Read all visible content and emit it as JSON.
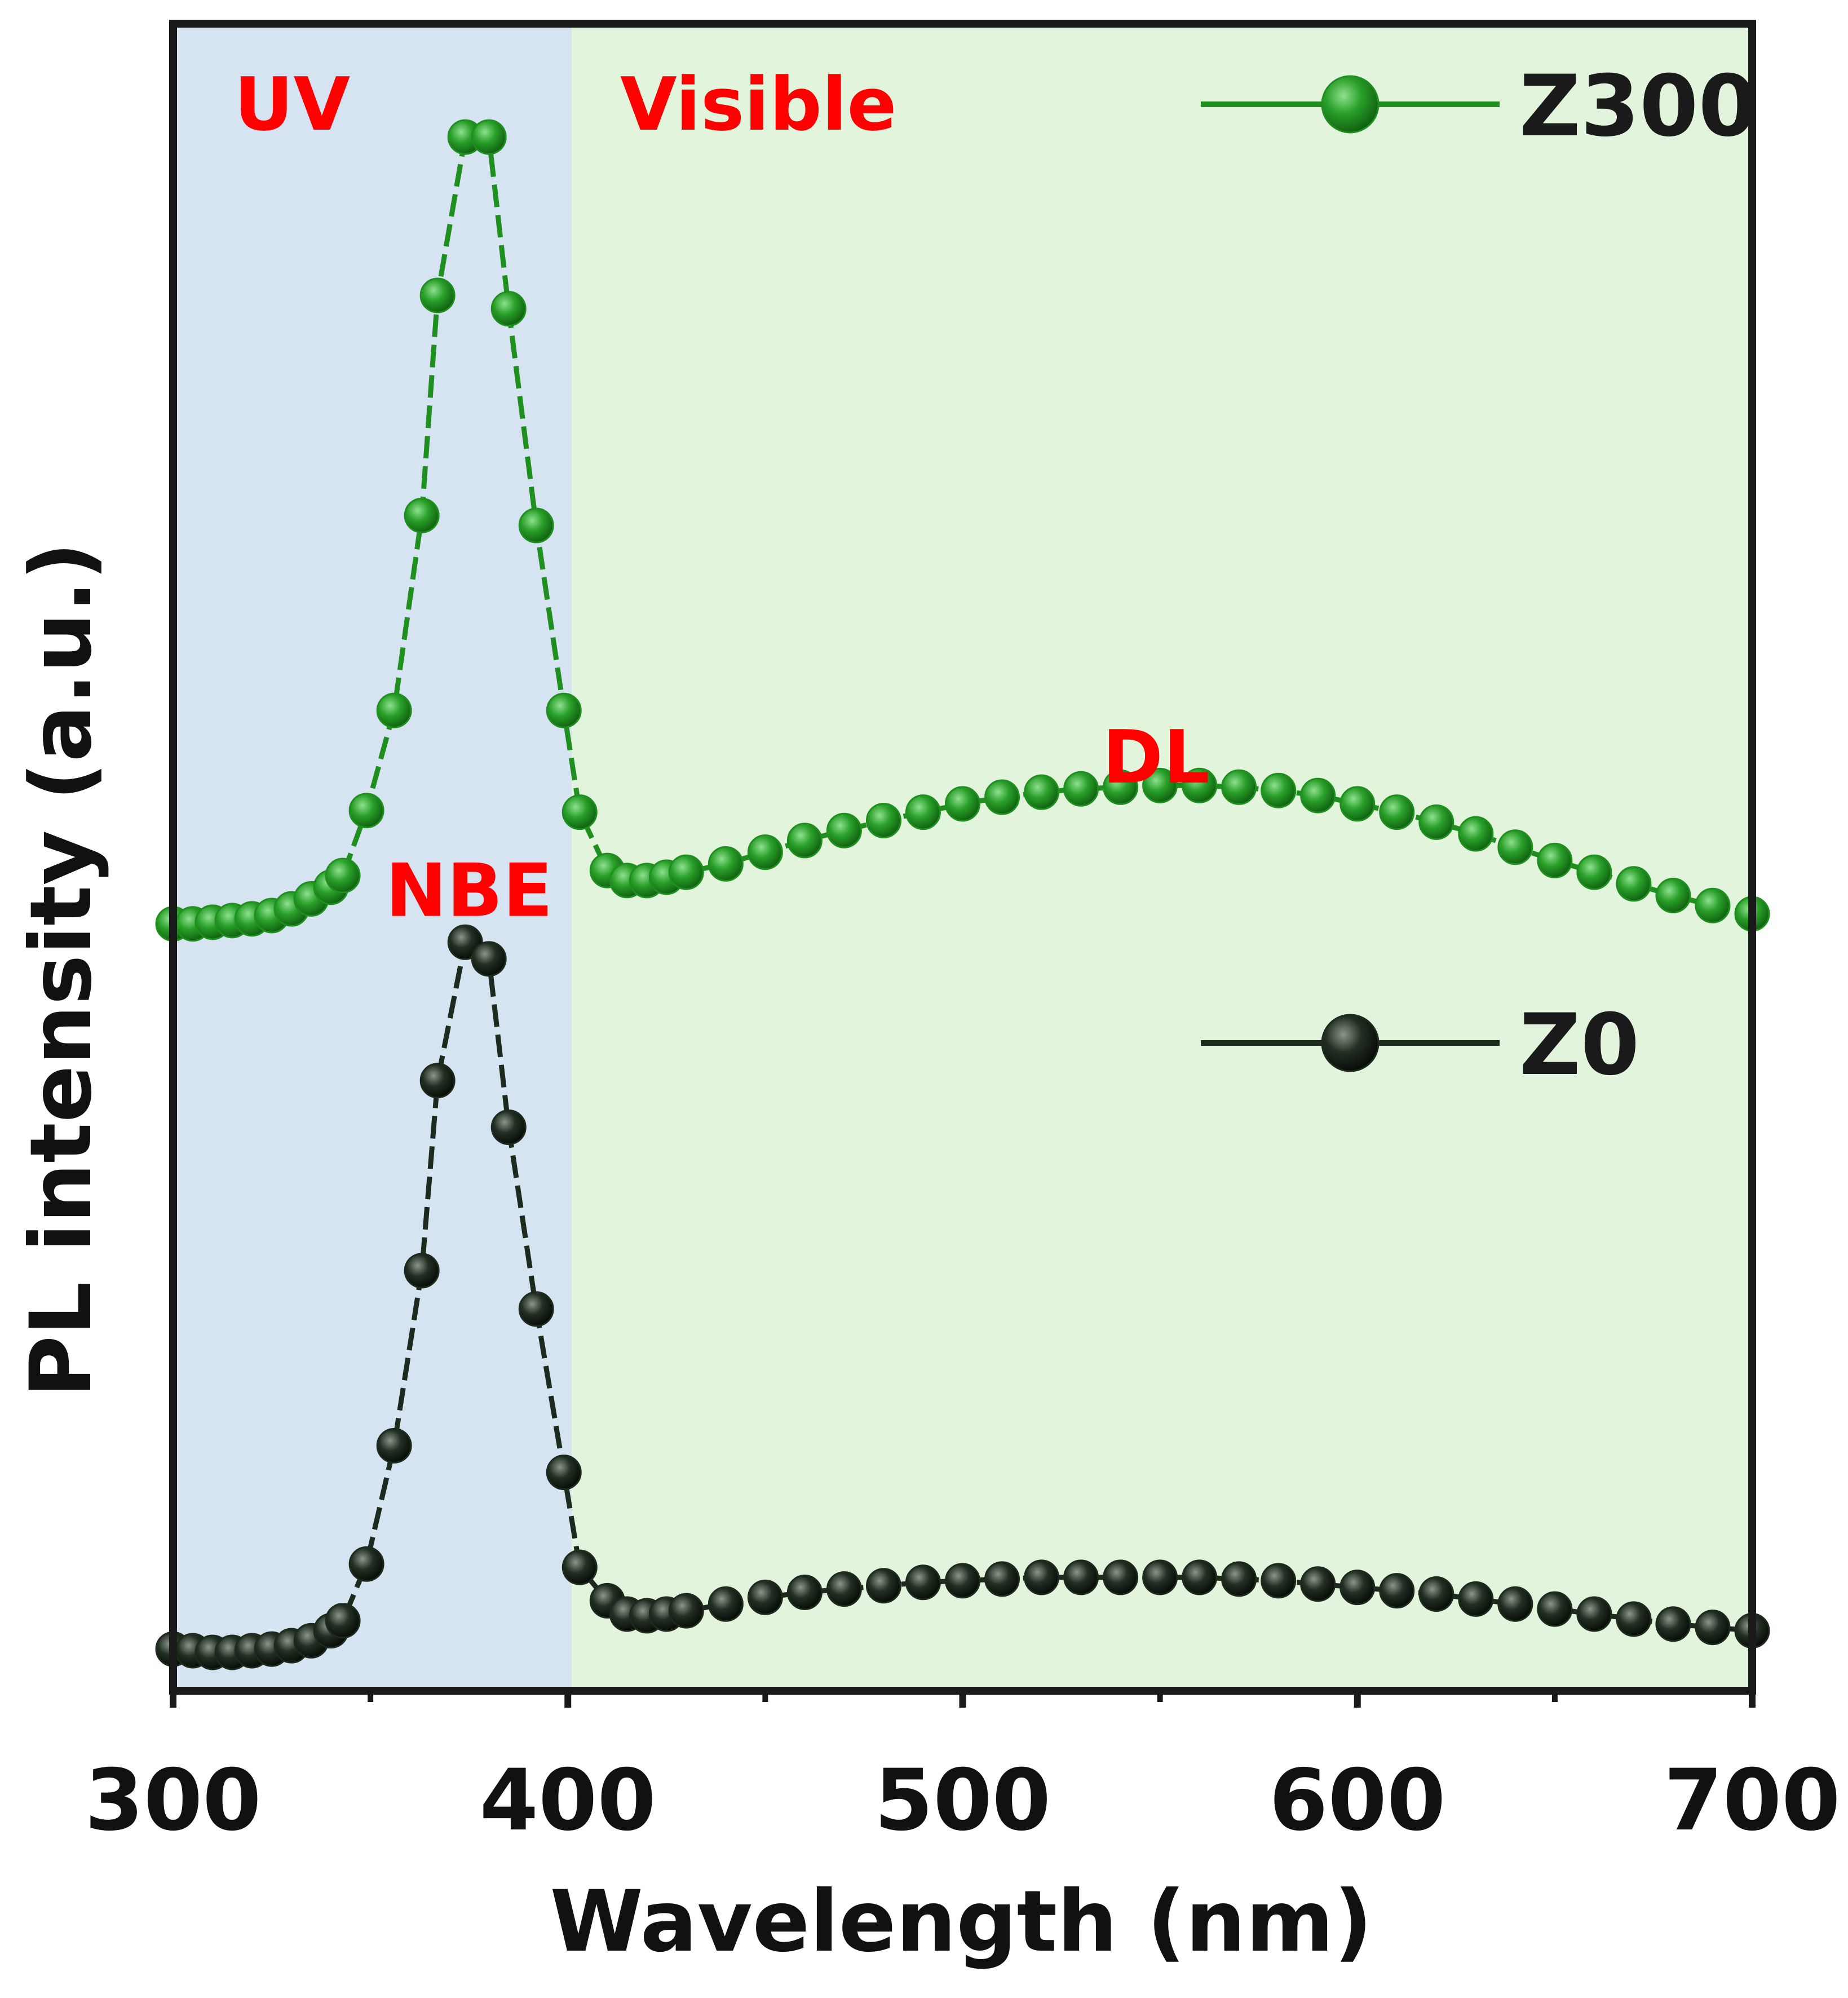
{
  "chart_data": {
    "type": "line",
    "title": "",
    "xlabel": "Wavelength (nm)",
    "ylabel": "PL intensity (a.u.)",
    "xlim": [
      300,
      700
    ],
    "ylim": [
      0,
      100
    ],
    "x_ticks": [
      300,
      400,
      500,
      600,
      700
    ],
    "x_tick_labels": [
      "300",
      "400",
      "500",
      "600",
      "700"
    ],
    "x_minor_ticks": [
      350,
      450,
      550,
      650
    ],
    "grid": false,
    "legend_position": "top-right",
    "regions": [
      {
        "name": "uv",
        "label": "UV",
        "x_range": [
          300,
          401
        ],
        "color": "#d6e4f2"
      },
      {
        "name": "visible",
        "label": "Visible",
        "x_range": [
          401,
          700
        ],
        "color": "#e3f4dc"
      }
    ],
    "annotations": [
      {
        "name": "nbe",
        "text": "NBE",
        "x": 375,
        "y": 48
      },
      {
        "name": "dl",
        "text": "DL",
        "x": 549,
        "y": 56
      }
    ],
    "series": [
      {
        "name": "Z300",
        "color": "#1f8f1f",
        "x": [
          300,
          305,
          310,
          315,
          320,
          325,
          330,
          335,
          340,
          343,
          349,
          356,
          363,
          367,
          374,
          380,
          385,
          392,
          399,
          403,
          410,
          415,
          420,
          425,
          430,
          440,
          450,
          460,
          470,
          480,
          490,
          500,
          510,
          520,
          530,
          540,
          550,
          560,
          570,
          580,
          590,
          600,
          610,
          620,
          630,
          640,
          650,
          660,
          670,
          680,
          690,
          700
        ],
        "y": [
          46,
          46,
          46.1,
          46.2,
          46.3,
          46.5,
          46.9,
          47.5,
          48.2,
          48.9,
          52.8,
          58.8,
          70.5,
          83.7,
          93.2,
          93.2,
          82.9,
          69.9,
          58.8,
          52.7,
          49.2,
          48.6,
          48.6,
          48.8,
          49.1,
          49.6,
          50.3,
          51,
          51.6,
          52.2,
          52.7,
          53.2,
          53.6,
          53.9,
          54.1,
          54.2,
          54.3,
          54.3,
          54.2,
          54,
          53.7,
          53.2,
          52.7,
          52.1,
          51.4,
          50.6,
          49.8,
          49.1,
          48.4,
          47.7,
          47.1,
          46.6
        ]
      },
      {
        "name": "Z0",
        "color": "#1e2a1e",
        "x": [
          300,
          305,
          310,
          315,
          320,
          325,
          330,
          335,
          340,
          343,
          349,
          356,
          363,
          367,
          374,
          380,
          385,
          392,
          399,
          403,
          410,
          415,
          420,
          425,
          430,
          440,
          450,
          460,
          470,
          480,
          490,
          500,
          510,
          520,
          530,
          540,
          550,
          560,
          570,
          580,
          590,
          600,
          610,
          620,
          630,
          640,
          650,
          660,
          670,
          680,
          690,
          700
        ],
        "y": [
          2.5,
          2.4,
          2.3,
          2.3,
          2.4,
          2.5,
          2.7,
          3,
          3.6,
          4.2,
          7.6,
          14.7,
          25.2,
          36.6,
          44.9,
          43.9,
          33.8,
          22.9,
          13.1,
          7.4,
          5.4,
          4.6,
          4.5,
          4.6,
          4.8,
          5.2,
          5.6,
          5.9,
          6.1,
          6.3,
          6.5,
          6.6,
          6.7,
          6.8,
          6.8,
          6.8,
          6.8,
          6.8,
          6.7,
          6.6,
          6.4,
          6.2,
          6,
          5.8,
          5.5,
          5.2,
          4.9,
          4.6,
          4.3,
          4,
          3.8,
          3.6
        ]
      }
    ],
    "legend": [
      {
        "name": "z300",
        "label": "Z300",
        "series": "Z300"
      },
      {
        "name": "z0",
        "label": "Z0",
        "series": "Z0"
      }
    ]
  }
}
